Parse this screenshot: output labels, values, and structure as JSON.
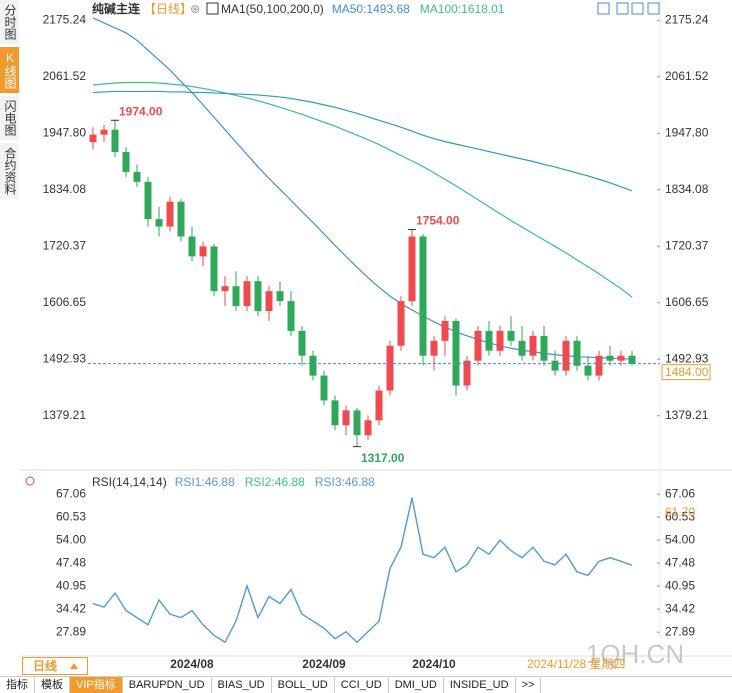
{
  "sidebar_tabs": [
    "分时图",
    "K线图",
    "闪电图",
    "合约资料"
  ],
  "active_tab": 1,
  "period_button": "日线",
  "toolbar_tabs": [
    "指标",
    "模板",
    "VIP指标",
    "BARUPDN_UD",
    "BIAS_UD",
    "BOLL_UD",
    "CCI_UD",
    "DMI_UD",
    "INSIDE_UD",
    ">>"
  ],
  "vip_tab": 2,
  "watermark": "1QH.CN",
  "chart_data": [
    {
      "type": "candlestick",
      "title": "纯碱主连",
      "period": "【日线】",
      "icon": "⊕",
      "indicator": "MA1(50,100,200,0)",
      "up_color": "#f04a4f",
      "down_color": "#2fa85a",
      "categories": [
        null,
        null,
        null,
        null,
        null,
        null,
        null,
        null,
        null,
        "2024/08",
        null,
        null,
        null,
        null,
        null,
        null,
        null,
        null,
        null,
        null,
        null,
        "2024/09",
        null,
        null,
        null,
        null,
        null,
        null,
        null,
        null,
        null,
        "2024/10",
        null,
        null,
        null,
        null,
        null,
        null,
        null,
        null,
        null,
        null,
        null,
        null,
        null,
        null,
        null,
        null,
        null,
        null
      ],
      "cursor_date": "2024/11/28 星期四",
      "open": [
        1930,
        1945,
        1955,
        1910,
        1870,
        1850,
        1775,
        1760,
        1810,
        1740,
        1700,
        1720,
        1630,
        1640,
        1600,
        1650,
        1590,
        1630,
        1610,
        1550,
        1500,
        1460,
        1410,
        1360,
        1390,
        1340,
        1370,
        1430,
        1520,
        1610,
        1740,
        1500,
        1530,
        1570,
        1440,
        1490,
        1550,
        1510,
        1550,
        1530,
        1500,
        1540,
        1490,
        1470,
        1530,
        1480,
        1460,
        1500,
        1490,
        1500
      ],
      "high": [
        1960,
        1965,
        1974,
        1920,
        1885,
        1860,
        1800,
        1820,
        1815,
        1760,
        1730,
        1725,
        1660,
        1670,
        1660,
        1660,
        1640,
        1650,
        1630,
        1560,
        1510,
        1470,
        1420,
        1400,
        1395,
        1380,
        1440,
        1530,
        1620,
        1754,
        1745,
        1540,
        1580,
        1575,
        1500,
        1560,
        1570,
        1560,
        1580,
        1560,
        1550,
        1560,
        1510,
        1540,
        1540,
        1500,
        1510,
        1520,
        1510,
        1510
      ],
      "low": [
        1915,
        1930,
        1900,
        1860,
        1840,
        1760,
        1740,
        1750,
        1730,
        1690,
        1680,
        1620,
        1600,
        1590,
        1590,
        1580,
        1570,
        1600,
        1540,
        1480,
        1450,
        1400,
        1350,
        1340,
        1317,
        1330,
        1360,
        1420,
        1510,
        1600,
        1480,
        1470,
        1500,
        1420,
        1430,
        1480,
        1500,
        1500,
        1520,
        1490,
        1490,
        1480,
        1460,
        1460,
        1470,
        1450,
        1450,
        1480,
        1480,
        1480
      ],
      "close": [
        1945,
        1955,
        1910,
        1870,
        1850,
        1775,
        1760,
        1810,
        1740,
        1700,
        1720,
        1630,
        1640,
        1600,
        1650,
        1590,
        1630,
        1610,
        1550,
        1500,
        1460,
        1410,
        1360,
        1390,
        1340,
        1370,
        1430,
        1520,
        1610,
        1740,
        1500,
        1530,
        1570,
        1440,
        1490,
        1550,
        1510,
        1550,
        1530,
        1500,
        1540,
        1490,
        1470,
        1530,
        1480,
        1460,
        1500,
        1490,
        1500,
        1484
      ],
      "series": [
        {
          "name": "MA50:1493.68",
          "color": "#3f8fdc",
          "values": [
            2180,
            2170,
            2160,
            2150,
            2135,
            2115,
            2095,
            2075,
            2052,
            2030,
            2005,
            1980,
            1955,
            1930,
            1905,
            1880,
            1857,
            1835,
            1813,
            1790,
            1768,
            1745,
            1722,
            1700,
            1678,
            1657,
            1638,
            1620,
            1605,
            1592,
            1580,
            1568,
            1558,
            1548,
            1540,
            1533,
            1526,
            1520,
            1515,
            1511,
            1508,
            1505,
            1502,
            1500,
            1498,
            1497,
            1496,
            1495,
            1494,
            1493.68
          ]
        },
        {
          "name": "MA100:1618.01",
          "color": "#3cbf8c",
          "values": [
            2045,
            2047,
            2049,
            2050,
            2050,
            2050,
            2049,
            2047,
            2045,
            2042,
            2038,
            2034,
            2029,
            2024,
            2019,
            2013,
            2007,
            2000,
            1993,
            1986,
            1978,
            1970,
            1962,
            1953,
            1944,
            1935,
            1925,
            1914,
            1903,
            1892,
            1881,
            1868,
            1855,
            1842,
            1828,
            1814,
            1800,
            1786,
            1772,
            1759,
            1746,
            1733,
            1720,
            1707,
            1693,
            1679,
            1665,
            1650,
            1635,
            1618.01
          ]
        },
        {
          "color": "#2f9bb8",
          "values": [
            2030,
            2031,
            2032,
            2032,
            2032,
            2032,
            2032,
            2031,
            2031,
            2030,
            2030,
            2029,
            2028,
            2027,
            2026,
            2025,
            2023,
            2021,
            2018,
            2014,
            2010,
            2005,
            2000,
            1994,
            1988,
            1981,
            1974,
            1967,
            1960,
            1952,
            1944,
            1937,
            1931,
            1926,
            1921,
            1916,
            1911,
            1906,
            1901,
            1896,
            1891,
            1885,
            1880,
            1874,
            1868,
            1862,
            1855,
            1848,
            1840,
            1832
          ]
        }
      ],
      "annotations": [
        {
          "value": 1974,
          "label": "1974.00"
        },
        {
          "value": 1754,
          "label": "1754.00"
        },
        {
          "value": 1317,
          "label": "1317.00"
        }
      ],
      "last_price": {
        "value": 1484,
        "label": "1484.00",
        "color": "#f39a2c",
        "line_color": "#3f8fdc"
      },
      "ylim": [
        1280,
        2200
      ],
      "yticks": [
        2175.24,
        2061.52,
        {
          "value": 1947.8,
          "label": "1947.80"
        },
        1834.08,
        1720.37,
        1606.65,
        1492.93,
        1379.21
      ]
    },
    {
      "type": "line",
      "indicator": "RSI(14,14,14)",
      "series": [
        {
          "name": "RSI1:46.88",
          "color": "#5b9bd5",
          "values": [
            36,
            35,
            39,
            34,
            32,
            30,
            37,
            33,
            32,
            34,
            30,
            27,
            25,
            31,
            41,
            32,
            38,
            36,
            40,
            33,
            31,
            29,
            26,
            28,
            25,
            28,
            31,
            46,
            52,
            66,
            50,
            49,
            52,
            45,
            47,
            52,
            50,
            54,
            51,
            49,
            52,
            48,
            47,
            50,
            45,
            44,
            48,
            49,
            48,
            46.88
          ]
        },
        {
          "name": "RSI2:46.88",
          "color": "#3cbf8c",
          "values": [
            36,
            35,
            39,
            34,
            32,
            30,
            37,
            33,
            32,
            34,
            30,
            27,
            25,
            31,
            41,
            32,
            38,
            36,
            40,
            33,
            31,
            29,
            26,
            28,
            25,
            28,
            31,
            46,
            52,
            66,
            50,
            49,
            52,
            45,
            47,
            52,
            50,
            54,
            51,
            49,
            52,
            48,
            47,
            50,
            45,
            44,
            48,
            49,
            48,
            46.88
          ]
        },
        {
          "name": "RSI3:46.88",
          "color": "#5b9bd5",
          "values": [
            36,
            35,
            39,
            34,
            32,
            30,
            37,
            33,
            32,
            34,
            30,
            27,
            25,
            31,
            41,
            32,
            38,
            36,
            40,
            33,
            31,
            29,
            26,
            28,
            25,
            28,
            31,
            46,
            52,
            66,
            50,
            49,
            52,
            45,
            47,
            52,
            50,
            54,
            51,
            49,
            52,
            48,
            47,
            50,
            45,
            44,
            48,
            49,
            48,
            46.88
          ]
        }
      ],
      "marker": {
        "value": 61.7,
        "label": "61.70",
        "color": "#f39a2c"
      },
      "ylim": [
        21.4,
        72.2
      ],
      "yticks": [
        67.06,
        60.53,
        {
          "value": 54,
          "label": "54.00"
        },
        47.48,
        40.95,
        34.42,
        27.89
      ]
    }
  ]
}
